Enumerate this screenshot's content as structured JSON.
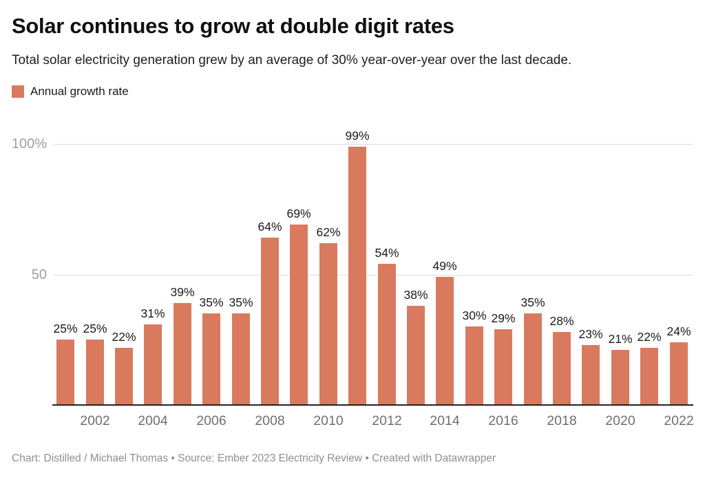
{
  "header": {
    "title": "Solar continues to grow at double digit rates",
    "subtitle": "Total solar electricity generation grew by an average of 30% year-over-year over the last decade."
  },
  "legend": {
    "label": "Annual growth rate"
  },
  "footer": {
    "text": "Chart: Distilled / Michael Thomas • Source: Ember 2023 Electricity Review • Created with Datawrapper"
  },
  "colors": {
    "bar": "#D97A5F",
    "grid": "#dcdcdc",
    "axis_line": "#222222",
    "y_tick_text": "#9e9e9e",
    "x_tick_text": "#6f6f6f",
    "value_label_text": "#1a1a1a"
  },
  "chart_data": {
    "type": "bar",
    "title": "Solar continues to grow at double digit rates",
    "subtitle": "Total solar electricity generation grew by an average of 30% year-over-year over the last decade.",
    "xlabel": "",
    "ylabel": "",
    "legend_entries": [
      "Annual growth rate"
    ],
    "legend_position": "top-left",
    "grid": "horizontal",
    "value_suffix": "%",
    "categories": [
      "2001",
      "2002",
      "2003",
      "2004",
      "2005",
      "2006",
      "2007",
      "2008",
      "2009",
      "2010",
      "2011",
      "2012",
      "2013",
      "2014",
      "2015",
      "2016",
      "2017",
      "2018",
      "2019",
      "2020",
      "2021",
      "2022"
    ],
    "values": [
      25,
      25,
      22,
      31,
      39,
      35,
      35,
      64,
      69,
      62,
      99,
      54,
      38,
      49,
      30,
      29,
      35,
      28,
      23,
      21,
      22,
      24
    ],
    "x_tick_labels": [
      "2002",
      "2004",
      "2006",
      "2008",
      "2010",
      "2012",
      "2014",
      "2016",
      "2018",
      "2020",
      "2022"
    ],
    "y_ticks": [
      {
        "value": 50,
        "label": "50"
      },
      {
        "value": 100,
        "label": "100%"
      }
    ],
    "ylim": [
      0,
      105
    ]
  }
}
